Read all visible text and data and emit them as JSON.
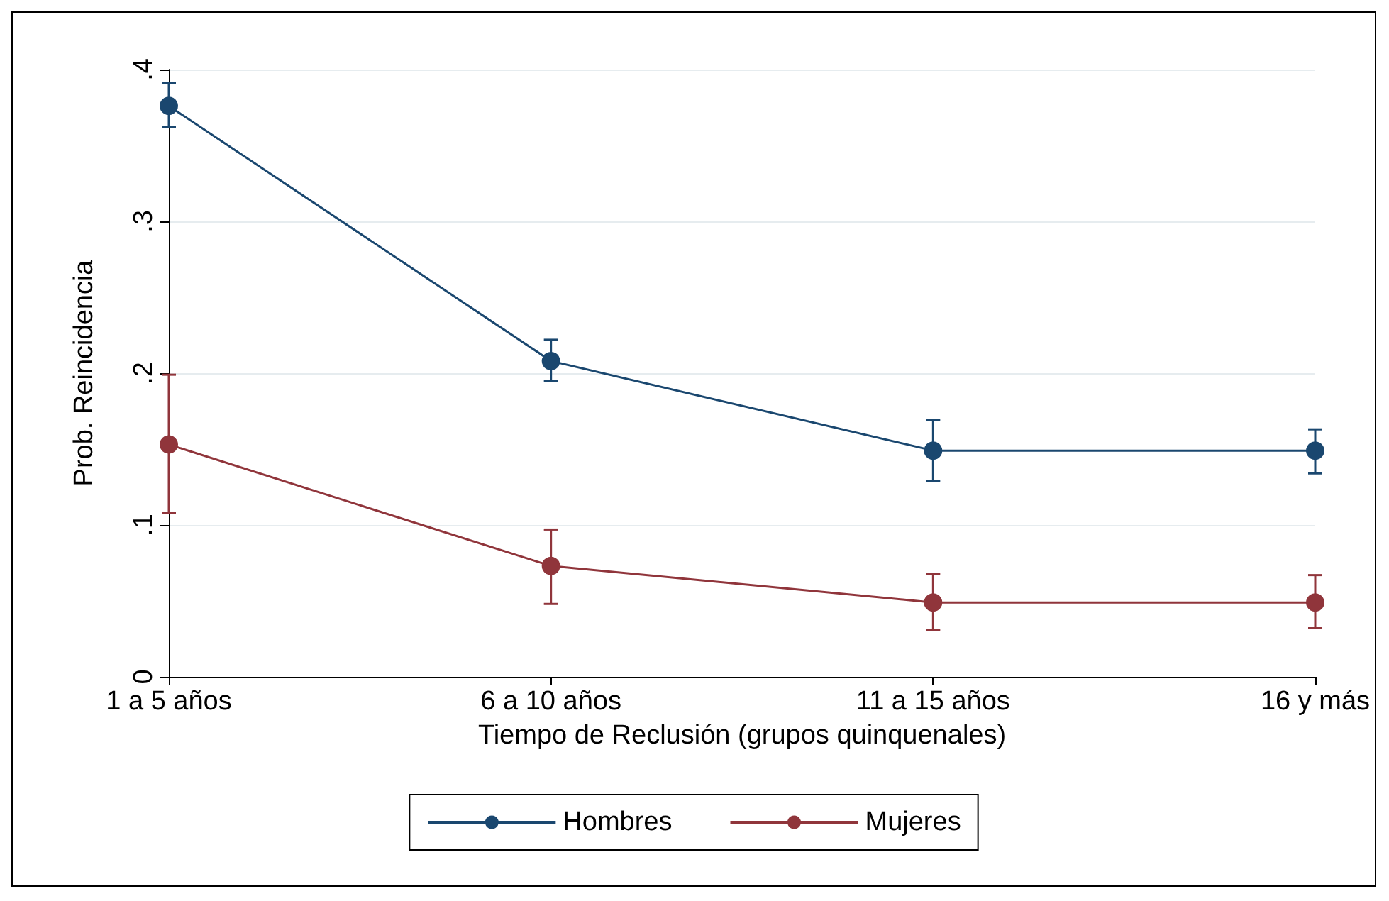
{
  "chart_data": {
    "type": "line",
    "xlabel": "Tiempo de Reclusión (grupos quinquenales)",
    "ylabel": "Prob. Reincidencia",
    "categories": [
      "1 a 5 años",
      "6 a 10 años",
      "11 a 15 años",
      "16 y más"
    ],
    "series": [
      {
        "name": "Hombres",
        "color": "#1a476f",
        "values": [
          0.376,
          0.208,
          0.149,
          0.149
        ],
        "errors": [
          [
            0.362,
            0.391
          ],
          [
            0.195,
            0.222
          ],
          [
            0.129,
            0.169
          ],
          [
            0.134,
            0.163
          ]
        ]
      },
      {
        "name": "Mujeres",
        "color": "#90353b",
        "values": [
          0.153,
          0.073,
          0.049,
          0.049
        ],
        "errors": [
          [
            0.108,
            0.199
          ],
          [
            0.048,
            0.097
          ],
          [
            0.031,
            0.068
          ],
          [
            0.032,
            0.067
          ]
        ]
      }
    ],
    "ylim": [
      0,
      0.4
    ],
    "yticks": [
      {
        "value": 0,
        "label": "0"
      },
      {
        "value": 0.1,
        "label": ".1"
      },
      {
        "value": 0.2,
        "label": ".2"
      },
      {
        "value": 0.3,
        "label": ".3"
      },
      {
        "value": 0.4,
        "label": ".4"
      }
    ],
    "grid": "y",
    "legend": "bottom",
    "marker": "circle",
    "line_style": "solid"
  }
}
